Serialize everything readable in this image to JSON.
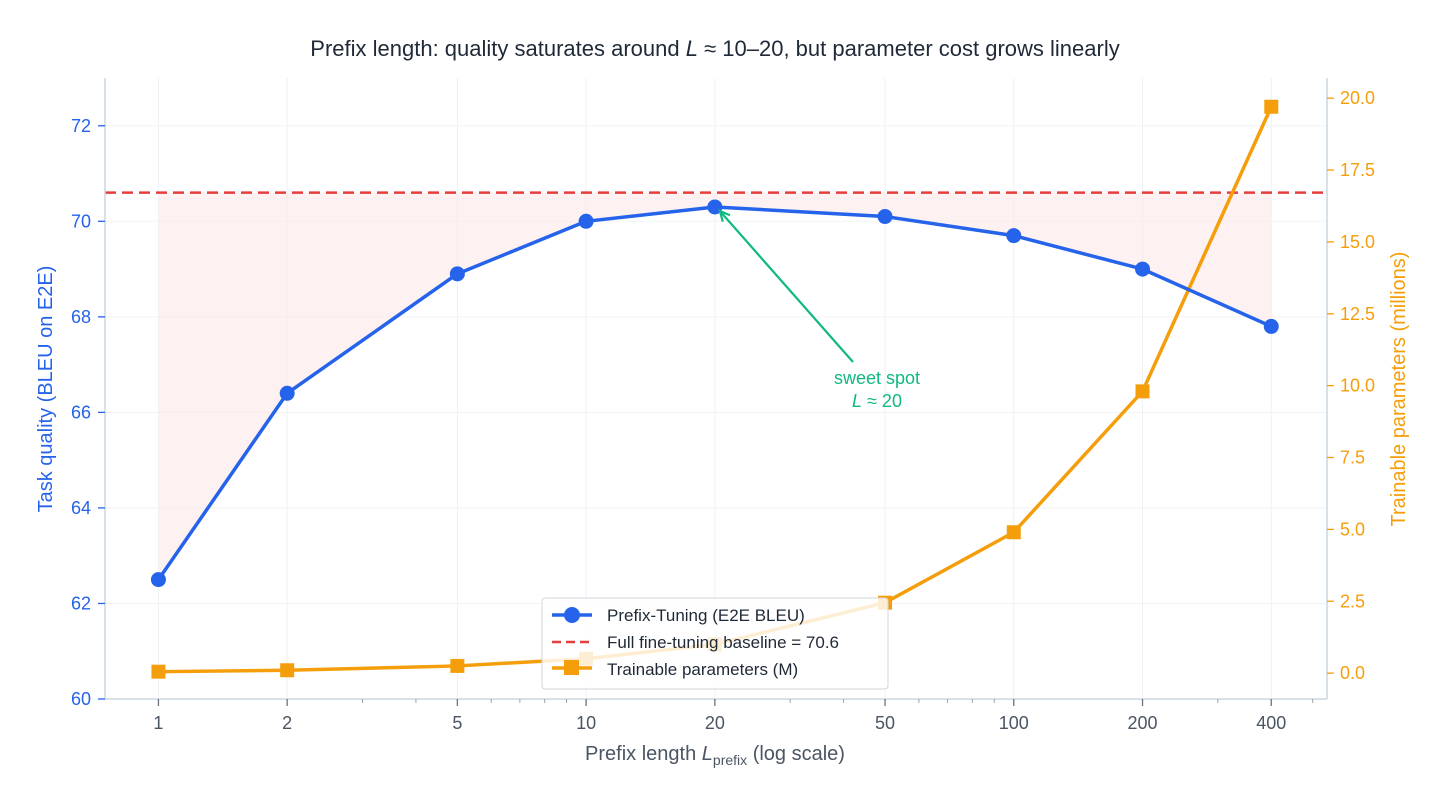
{
  "chart_data": {
    "type": "line",
    "title_parts": [
      "Prefix length: quality saturates around ",
      "L",
      " ≈ 10–20, but parameter cost grows linearly"
    ],
    "x": [
      1,
      2,
      5,
      10,
      20,
      50,
      100,
      200,
      400
    ],
    "x_tick_labels": [
      "1",
      "2",
      "5",
      "10",
      "20",
      "50",
      "100",
      "200",
      "400"
    ],
    "x_scale": "log",
    "xlabel_parts": [
      "Prefix length ",
      "L",
      "prefix",
      " (log scale)"
    ],
    "ylabel_left": "Task quality (BLEU on E2E)",
    "ylabel_right": "Trainable parameters (millions)",
    "ylim_left": [
      60,
      73
    ],
    "ylim_right": [
      -0.9,
      20.7
    ],
    "y_ticks_left": [
      "60",
      "62",
      "64",
      "66",
      "68",
      "70",
      "72"
    ],
    "y_ticks_right": [
      "0.0",
      "2.5",
      "5.0",
      "7.5",
      "10.0",
      "12.5",
      "15.0",
      "17.5",
      "20.0"
    ],
    "series": [
      {
        "name": "Prefix-Tuning (E2E BLEU)",
        "axis": "left",
        "color": "#2563eb",
        "marker": "circle",
        "values": [
          62.5,
          66.4,
          68.9,
          70.0,
          70.3,
          70.1,
          69.7,
          69.0,
          67.8
        ]
      },
      {
        "name": "Trainable parameters (M)",
        "axis": "right",
        "color": "#f59e0b",
        "marker": "square",
        "values": [
          0.05,
          0.1,
          0.25,
          0.5,
          1.0,
          2.45,
          4.9,
          9.8,
          19.7
        ]
      }
    ],
    "baseline": {
      "name": "Full fine-tuning baseline = 70.6",
      "value": 70.6,
      "color": "#e53e3e",
      "style": "dashed"
    },
    "fill_between_series_and_baseline": true,
    "annotation": {
      "line1": "sweet spot",
      "line2_parts": [
        "L",
        " ≈ 20"
      ],
      "points_to_x": 20,
      "color": "#10b981"
    },
    "legend_position": "bottom-center",
    "grid": true,
    "colors": {
      "left_axis": "#2563eb",
      "right_axis": "#f59e0b",
      "axis_line": "#cbd5e1",
      "x_axis_text": "#4b5563"
    }
  }
}
